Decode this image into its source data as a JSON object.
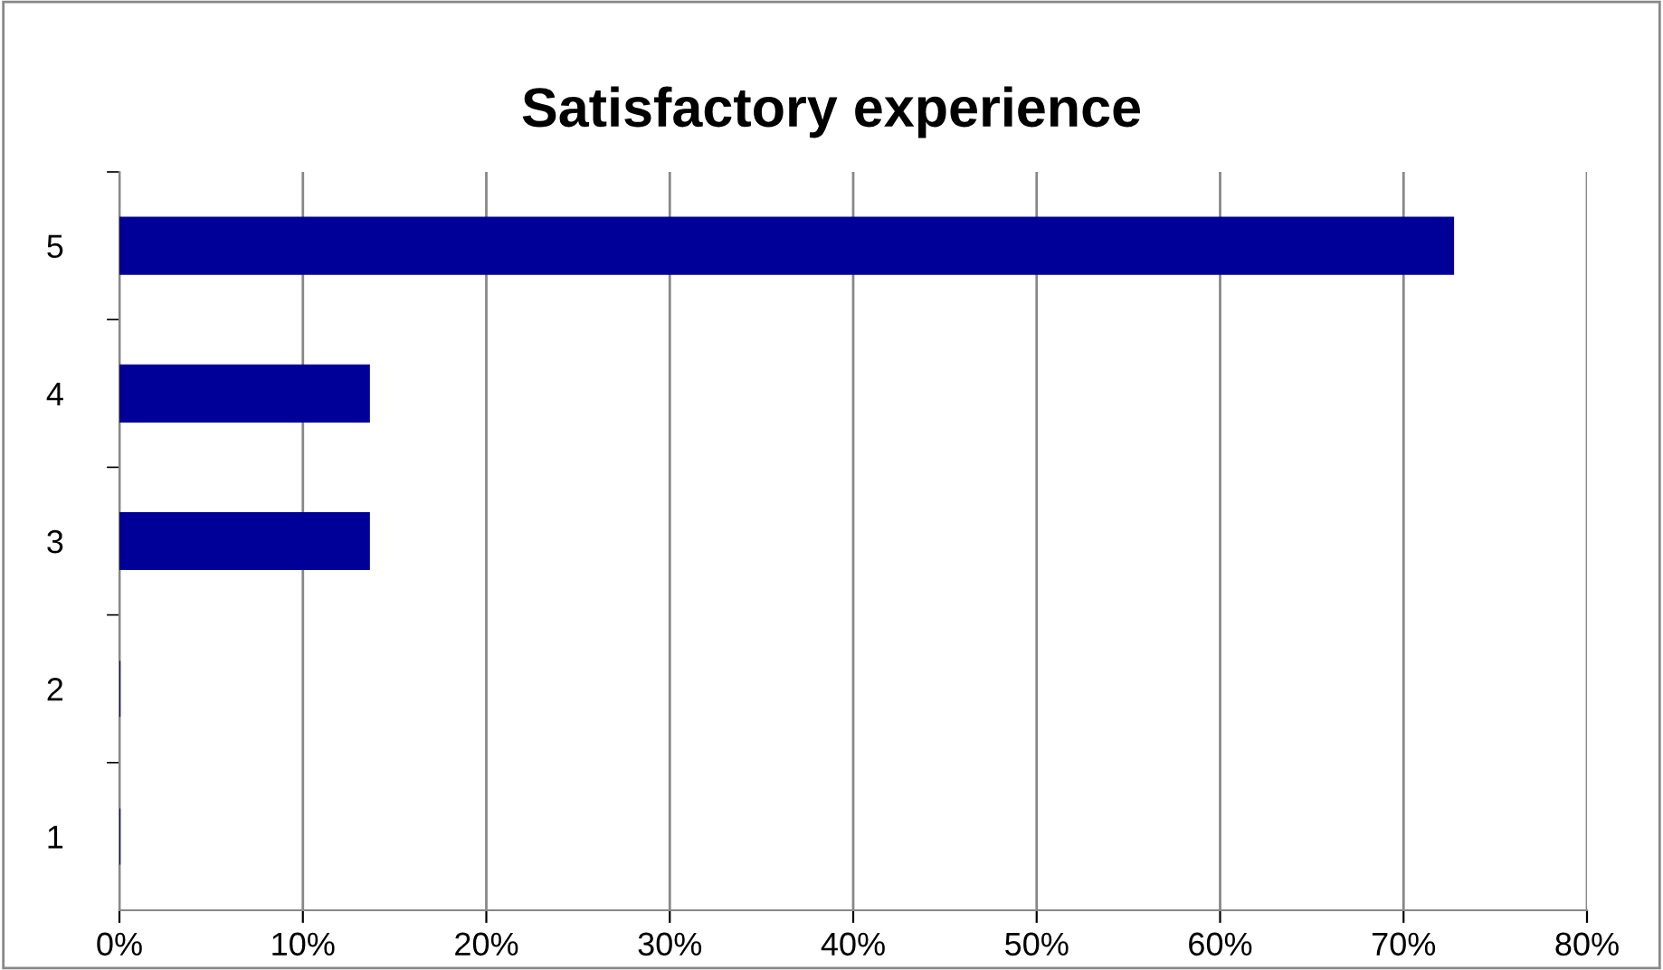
{
  "chart_data": {
    "type": "bar",
    "orientation": "horizontal",
    "title": "Satisfactory experience",
    "categories": [
      "5",
      "4",
      "3",
      "2",
      "1"
    ],
    "values": [
      72.7,
      13.6,
      13.6,
      0,
      0
    ],
    "color": "#000099",
    "xlim": [
      0,
      80
    ],
    "xticks": [
      {
        "value": 0,
        "label": "0%"
      },
      {
        "value": 10,
        "label": "10%"
      },
      {
        "value": 20,
        "label": "20%"
      },
      {
        "value": 30,
        "label": "30%"
      },
      {
        "value": 40,
        "label": "40%"
      },
      {
        "value": 50,
        "label": "50%"
      },
      {
        "value": 60,
        "label": "60%"
      },
      {
        "value": 70,
        "label": "70%"
      },
      {
        "value": 80,
        "label": "80%"
      }
    ],
    "grid": "x",
    "legend": false
  }
}
